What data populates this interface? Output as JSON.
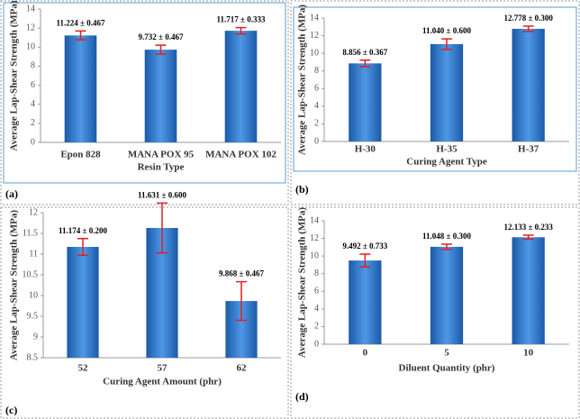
{
  "chart_data": [
    {
      "type": "bar",
      "panel": "(a)",
      "ylabel": "Average Lap-Shear Strength (MPa)",
      "xlabel": "Resin Type",
      "categories": [
        "Epon 828",
        "MANA POX 95",
        "MANA POX 102"
      ],
      "values": [
        11.224,
        9.732,
        11.717
      ],
      "errors": [
        0.467,
        0.467,
        0.333
      ],
      "value_labels": [
        "11.224 ± 0.467",
        "9.732 ± 0.467",
        "11.717 ± 0.333"
      ],
      "color": "#2a6fc4",
      "error_color": "#e02020",
      "ylim": [
        0,
        14
      ],
      "yticks": [
        0,
        2,
        4,
        6,
        8,
        10,
        12,
        14
      ]
    },
    {
      "type": "bar",
      "panel": "(b)",
      "ylabel": "Average Lap-Shear Strength (MPa)",
      "xlabel": "Curing Agent Type",
      "categories": [
        "H-30",
        "H-35",
        "H-37"
      ],
      "values": [
        8.856,
        11.04,
        12.778
      ],
      "errors": [
        0.367,
        0.6,
        0.3
      ],
      "value_labels": [
        "8.856 ± 0.367",
        "11.040 ± 0.600",
        "12.778 ± 0.300"
      ],
      "color": "#2a6fc4",
      "error_color": "#e02020",
      "ylim": [
        0,
        14
      ],
      "yticks": [
        0,
        2,
        4,
        6,
        8,
        10,
        12,
        14
      ]
    },
    {
      "type": "bar",
      "panel": "(c)",
      "ylabel": "Average Lap-Shear Strength (MPa)",
      "xlabel": "Curing Agent Amount (phr)",
      "categories": [
        "52",
        "57",
        "62"
      ],
      "values": [
        11.174,
        11.631,
        9.868
      ],
      "errors": [
        0.2,
        0.6,
        0.467
      ],
      "value_labels": [
        "11.174 ± 0.200",
        "11.631 ± 0.600",
        "9.868 ± 0.467"
      ],
      "color": "#2a6fc4",
      "error_color": "#e02020",
      "ylim": [
        8.5,
        12
      ],
      "yticks": [
        8.5,
        9,
        9.5,
        10,
        10.5,
        11,
        11.5,
        12
      ]
    },
    {
      "type": "bar",
      "panel": "(d)",
      "ylabel": "Average Lap-Shear Strength (MPa)",
      "xlabel": "Diluent Quantity (phr)",
      "categories": [
        "0",
        "5",
        "10"
      ],
      "values": [
        9.492,
        11.048,
        12.133
      ],
      "errors": [
        0.733,
        0.3,
        0.233
      ],
      "value_labels": [
        "9.492 ± 0.733",
        "11.048 ± 0.300",
        "12.133 ± 0.233"
      ],
      "color": "#2a6fc4",
      "error_color": "#e02020",
      "ylim": [
        0,
        14
      ],
      "yticks": [
        0,
        2,
        4,
        6,
        8,
        10,
        12,
        14
      ]
    }
  ]
}
